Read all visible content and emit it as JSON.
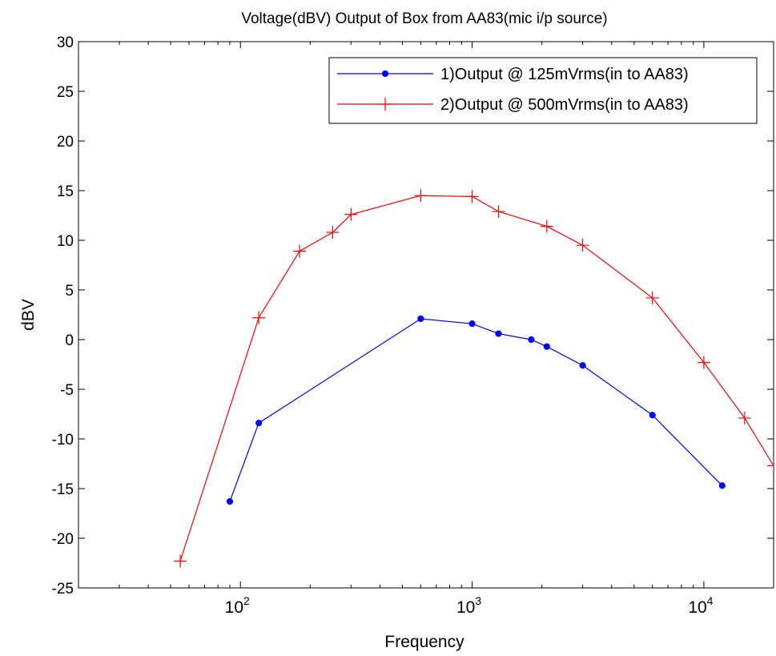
{
  "chart_data": {
    "type": "line",
    "title": "Voltage(dBV) Output of Box from AA83(mic i/p source)",
    "xlabel": "Frequency",
    "ylabel": "dBV",
    "x_scale": "log",
    "xlim": [
      20,
      20000
    ],
    "ylim": [
      -25,
      30
    ],
    "y_ticks": [
      -25,
      -20,
      -15,
      -10,
      -5,
      0,
      5,
      10,
      15,
      20,
      25,
      30
    ],
    "x_major_ticks": [
      {
        "value": 100,
        "base": "10",
        "exp": "2"
      },
      {
        "value": 1000,
        "base": "10",
        "exp": "3"
      },
      {
        "value": 10000,
        "base": "10",
        "exp": "4"
      }
    ],
    "grid": false,
    "legend_position": "top-right",
    "series": [
      {
        "name": "1)Output @ 125mVrms(in to AA83)",
        "color": "#0000ff",
        "marker": "dot",
        "x": [
          90,
          120,
          600,
          1000,
          1300,
          1800,
          2100,
          3000,
          6000,
          12000
        ],
        "y": [
          -16.3,
          -8.4,
          2.1,
          1.6,
          0.6,
          0.0,
          -0.7,
          -2.6,
          -7.6,
          -14.7
        ]
      },
      {
        "name": "2)Output @ 500mVrms(in to AA83)",
        "color": "#ff0000",
        "marker": "plus",
        "x": [
          55,
          120,
          180,
          250,
          300,
          600,
          1000,
          1300,
          2100,
          3000,
          6000,
          10000,
          15000,
          20000
        ],
        "y": [
          -22.3,
          2.2,
          8.9,
          10.8,
          12.6,
          14.5,
          14.4,
          12.9,
          11.4,
          9.5,
          4.2,
          -2.3,
          -7.9,
          -12.7
        ]
      }
    ]
  }
}
